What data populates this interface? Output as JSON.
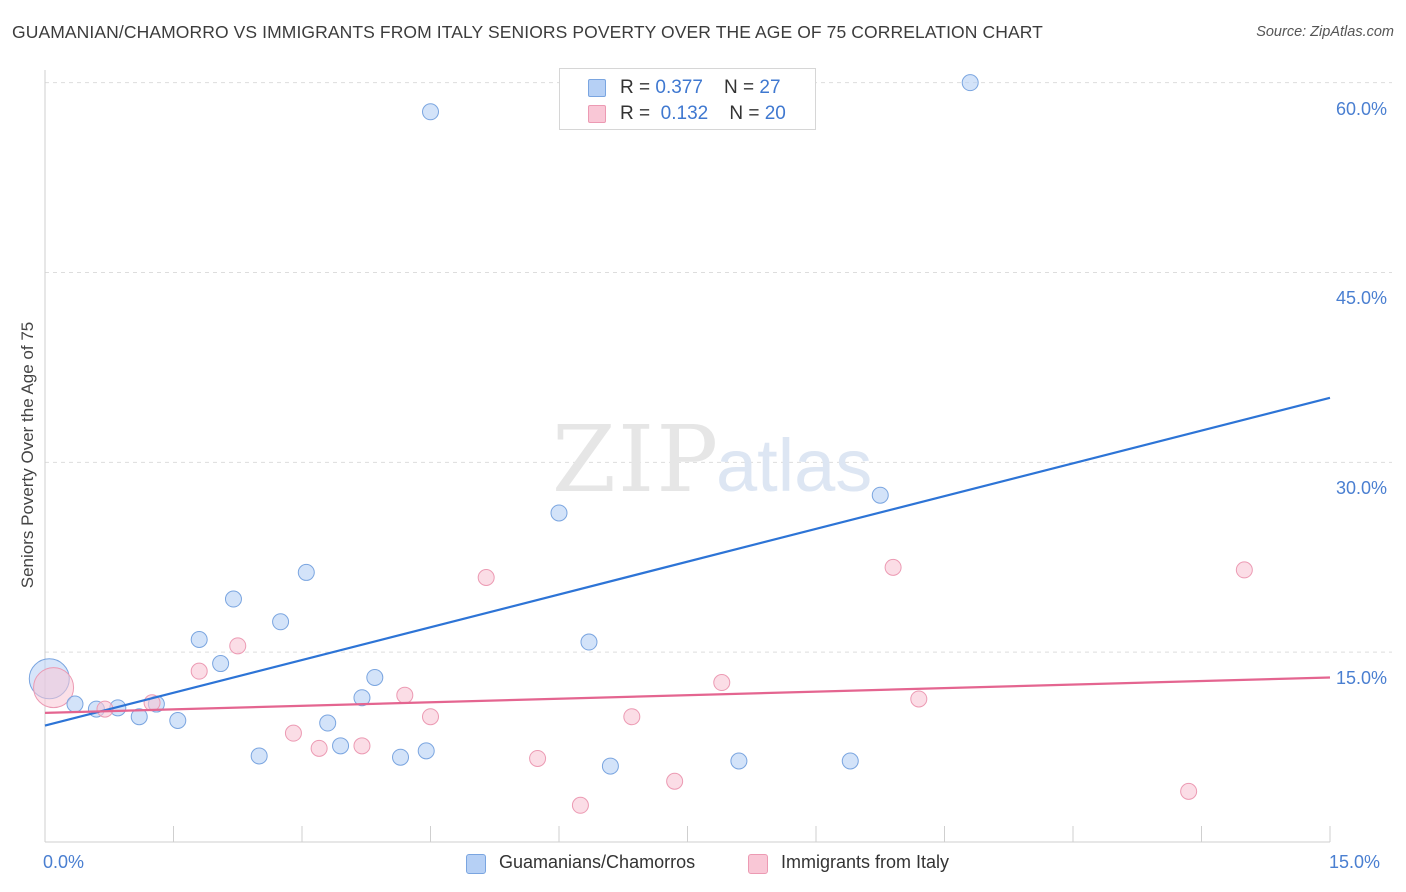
{
  "header": {
    "title": "GUAMANIAN/CHAMORRO VS IMMIGRANTS FROM ITALY SENIORS POVERTY OVER THE AGE OF 75 CORRELATION CHART",
    "source": "Source: ZipAtlas.com"
  },
  "watermark": {
    "zip": "ZIP",
    "atlas": "atlas"
  },
  "legend": {
    "rows": [
      {
        "r_label": "R = ",
        "r_value": "0.377",
        "n_label": "N = ",
        "n_value": "27"
      },
      {
        "r_label": "R = ",
        "r_value": "0.132",
        "n_label": "N = ",
        "n_value": "20"
      }
    ],
    "bottom": [
      "Guamanians/Chamorros",
      "Immigrants from Italy"
    ]
  },
  "colors": {
    "series1_fill": "#b6d0f5",
    "series1_stroke": "#7aa5e0",
    "series1_line": "#2d74d6",
    "series2_fill": "#f9c7d6",
    "series2_stroke": "#ec9ab3",
    "series2_line": "#e46590",
    "grid": "#dddddd",
    "tick_text": "#4a7fd1"
  },
  "chart_data": {
    "type": "scatter",
    "title": "GUAMANIAN/CHAMORRO VS IMMIGRANTS FROM ITALY SENIORS POVERTY OVER THE AGE OF 75 CORRELATION CHART",
    "xlabel": "",
    "ylabel": "Seniors Poverty Over the Age of 75",
    "xlim": [
      0,
      15
    ],
    "ylim": [
      0,
      61
    ],
    "x_tick_labels": [
      "0.0%",
      "15.0%"
    ],
    "y_ticks": [
      15,
      30,
      45,
      60
    ],
    "y_tick_labels": [
      "15.0%",
      "30.0%",
      "45.0%",
      "60.0%"
    ],
    "series": [
      {
        "name": "Guamanians/Chamorros",
        "r": 0.377,
        "n": 27,
        "points": [
          {
            "x": 0.05,
            "y": 12.9,
            "big": true
          },
          {
            "x": 0.35,
            "y": 10.9
          },
          {
            "x": 0.6,
            "y": 10.5
          },
          {
            "x": 0.85,
            "y": 10.6
          },
          {
            "x": 1.1,
            "y": 9.9
          },
          {
            "x": 1.3,
            "y": 10.9
          },
          {
            "x": 1.55,
            "y": 9.6
          },
          {
            "x": 1.8,
            "y": 16.0
          },
          {
            "x": 2.05,
            "y": 14.1
          },
          {
            "x": 2.2,
            "y": 19.2
          },
          {
            "x": 2.5,
            "y": 6.8
          },
          {
            "x": 2.75,
            "y": 17.4
          },
          {
            "x": 3.05,
            "y": 21.3
          },
          {
            "x": 3.3,
            "y": 9.4
          },
          {
            "x": 3.45,
            "y": 7.6
          },
          {
            "x": 3.7,
            "y": 11.4
          },
          {
            "x": 3.85,
            "y": 13.0
          },
          {
            "x": 4.15,
            "y": 6.7
          },
          {
            "x": 4.45,
            "y": 7.2
          },
          {
            "x": 4.5,
            "y": 57.7
          },
          {
            "x": 6.0,
            "y": 26.0
          },
          {
            "x": 6.35,
            "y": 15.8
          },
          {
            "x": 6.6,
            "y": 6.0
          },
          {
            "x": 8.1,
            "y": 6.4
          },
          {
            "x": 9.4,
            "y": 6.4
          },
          {
            "x": 9.75,
            "y": 27.4
          },
          {
            "x": 10.8,
            "y": 60.0
          }
        ],
        "trend": {
          "x0": 0,
          "y0": 9.2,
          "x1": 15,
          "y1": 35.1
        }
      },
      {
        "name": "Immigrants from Italy",
        "r": 0.132,
        "n": 20,
        "points": [
          {
            "x": 0.1,
            "y": 12.2,
            "big": true
          },
          {
            "x": 0.7,
            "y": 10.5
          },
          {
            "x": 1.25,
            "y": 11.0
          },
          {
            "x": 1.8,
            "y": 13.5
          },
          {
            "x": 2.25,
            "y": 15.5
          },
          {
            "x": 2.9,
            "y": 8.6
          },
          {
            "x": 3.2,
            "y": 7.4
          },
          {
            "x": 3.7,
            "y": 7.6
          },
          {
            "x": 4.2,
            "y": 11.6
          },
          {
            "x": 4.5,
            "y": 9.9
          },
          {
            "x": 5.15,
            "y": 20.9
          },
          {
            "x": 5.75,
            "y": 6.6
          },
          {
            "x": 6.25,
            "y": 2.9
          },
          {
            "x": 6.85,
            "y": 9.9
          },
          {
            "x": 7.35,
            "y": 4.8
          },
          {
            "x": 7.9,
            "y": 12.6
          },
          {
            "x": 9.9,
            "y": 21.7
          },
          {
            "x": 10.2,
            "y": 11.3
          },
          {
            "x": 13.35,
            "y": 4.0
          },
          {
            "x": 14.0,
            "y": 21.5
          }
        ],
        "trend": {
          "x0": 0,
          "y0": 10.2,
          "x1": 15,
          "y1": 13.0
        }
      }
    ]
  }
}
